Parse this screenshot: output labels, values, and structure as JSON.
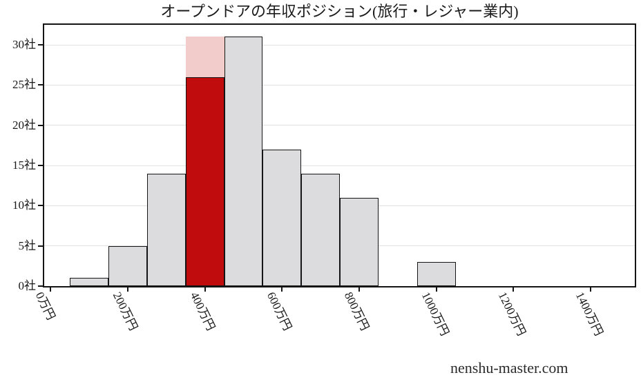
{
  "page": {
    "background": "#ffffff"
  },
  "watermark": "nenshu-master.com",
  "chart_data": {
    "type": "bar",
    "chart_kind": "histogram",
    "title": "オープンドアの年収ポジション(旅行・レジャー業内)",
    "x_unit": "万円",
    "y_unit": "社",
    "bin_width": 100,
    "bins": [
      {
        "center": 100,
        "count": 1
      },
      {
        "center": 200,
        "count": 5
      },
      {
        "center": 300,
        "count": 14
      },
      {
        "center": 400,
        "count": 31,
        "highlight_count": 26
      },
      {
        "center": 500,
        "count": 31
      },
      {
        "center": 600,
        "count": 17
      },
      {
        "center": 700,
        "count": 14
      },
      {
        "center": 800,
        "count": 11
      },
      {
        "center": 900,
        "count": 0
      },
      {
        "center": 1000,
        "count": 3
      },
      {
        "center": 1100,
        "count": 0
      },
      {
        "center": 1200,
        "count": 0
      },
      {
        "center": 1300,
        "count": 0
      },
      {
        "center": 1400,
        "count": 0
      }
    ],
    "x_ticks": [
      {
        "value": 0,
        "label": "0万円"
      },
      {
        "value": 200,
        "label": "200万円"
      },
      {
        "value": 400,
        "label": "400万円"
      },
      {
        "value": 600,
        "label": "600万円"
      },
      {
        "value": 800,
        "label": "800万円"
      },
      {
        "value": 1000,
        "label": "1000万円"
      },
      {
        "value": 1200,
        "label": "1200万円"
      },
      {
        "value": 1400,
        "label": "1400万円"
      }
    ],
    "y_ticks": [
      {
        "value": 0,
        "label": "0社"
      },
      {
        "value": 5,
        "label": "5社"
      },
      {
        "value": 10,
        "label": "10社"
      },
      {
        "value": 15,
        "label": "15社"
      },
      {
        "value": 20,
        "label": "20社"
      },
      {
        "value": 25,
        "label": "25社"
      },
      {
        "value": 30,
        "label": "30社"
      }
    ],
    "ylim": [
      0,
      32.7
    ],
    "xlim": [
      -20,
      1518
    ],
    "grid": "horizontal",
    "legend": null,
    "colors": {
      "bar_fill": "#dcdcde",
      "bar_edge": "#141414",
      "highlight_fill": "#c00c0c",
      "highlight_overlay_fill": "#f2cbcb",
      "gridline": "#e2e2e2",
      "background": "#ffffff",
      "text": "#1a1a1a"
    }
  }
}
